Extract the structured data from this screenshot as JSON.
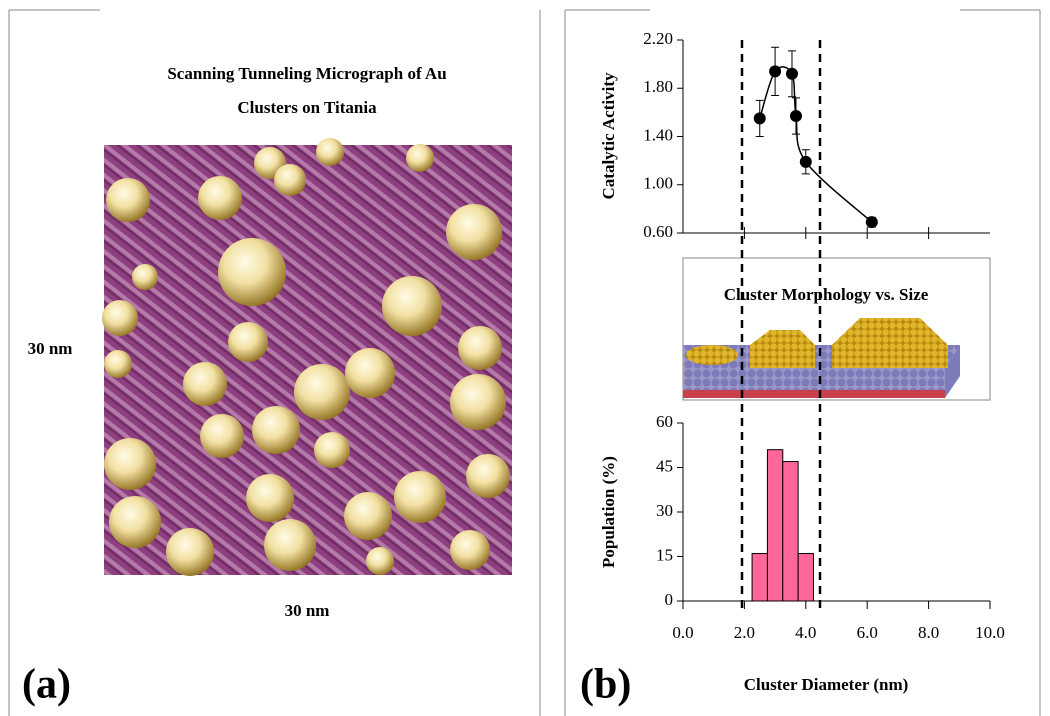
{
  "panel_a": {
    "label": "(a)",
    "title_lines": [
      "Scanning Tunneling Micrograph of Au",
      "Clusters on Titania"
    ],
    "side_scale": "30 nm",
    "bottom_scale": "30 nm"
  },
  "panel_b": {
    "label": "(b)",
    "morphology_title": "Cluster Morphology vs. Size"
  },
  "chart_data": [
    {
      "type": "line",
      "y_label": "Catalytic Activity",
      "x": [
        2.5,
        3.0,
        3.55,
        3.68,
        4.0,
        6.15
      ],
      "values": [
        1.55,
        1.94,
        1.92,
        1.57,
        1.19,
        0.69
      ],
      "errors": [
        0.15,
        0.2,
        0.19,
        0.15,
        0.1,
        0.04
      ],
      "color": "#000000",
      "xlim": [
        0,
        10
      ],
      "ylim": [
        0.6,
        2.2
      ],
      "yticks": [
        {
          "value": 0.6,
          "label": "0.60"
        },
        {
          "value": 1.0,
          "label": "1.00"
        },
        {
          "value": 1.4,
          "label": "1.40"
        },
        {
          "value": 1.8,
          "label": "1.80"
        },
        {
          "value": 2.2,
          "label": "2.20"
        }
      ]
    },
    {
      "type": "histogram",
      "x_label": "Cluster Diameter (nm)",
      "y_label": "Population (%)",
      "bins": [
        2.25,
        2.75,
        3.25,
        3.75,
        4.25
      ],
      "values": [
        16,
        51,
        47,
        16
      ],
      "color": "#ff6699",
      "xlim": [
        0,
        10
      ],
      "ylim": [
        0,
        60
      ],
      "yticks": [
        0,
        15,
        30,
        45,
        60
      ],
      "xticks": [
        {
          "value": 0,
          "label": "0.0"
        },
        {
          "value": 2,
          "label": "2.0"
        },
        {
          "value": 4,
          "label": "4.0"
        },
        {
          "value": 6,
          "label": "6.0"
        },
        {
          "value": 8,
          "label": "8.0"
        },
        {
          "value": 10,
          "label": "10.0"
        }
      ]
    }
  ]
}
